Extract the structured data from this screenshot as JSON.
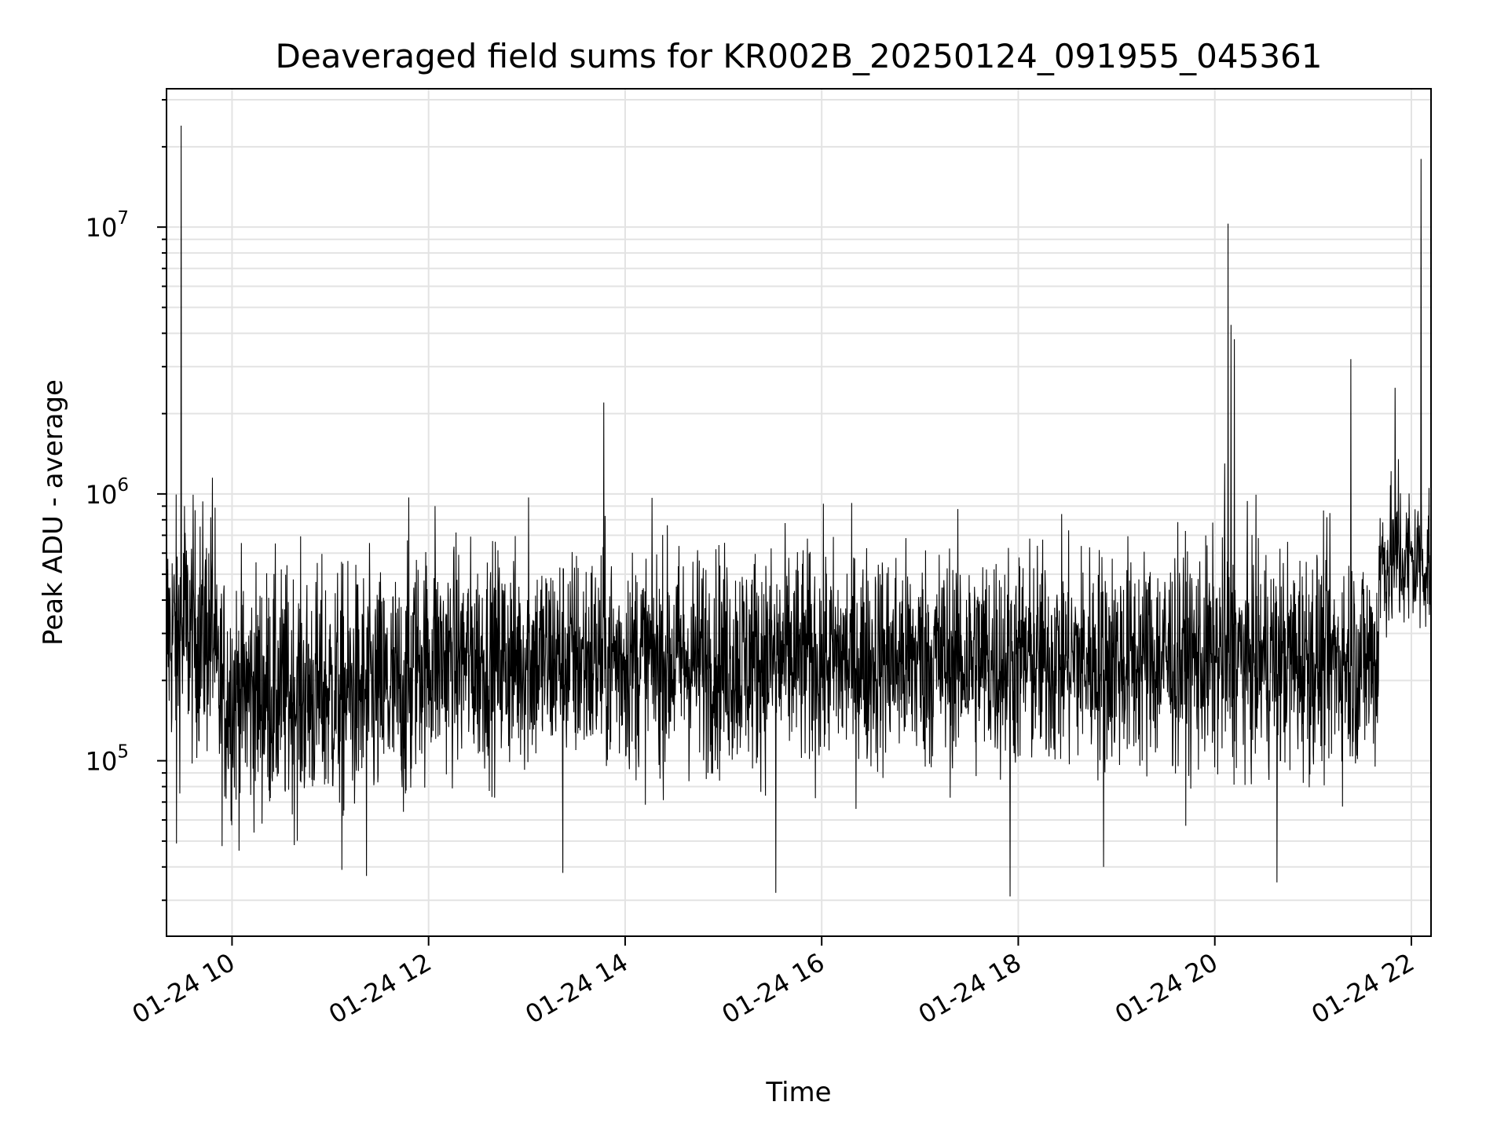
{
  "chart_data": {
    "type": "line",
    "title": "Deaveraged field sums for KR002B_20250124_091955_045361",
    "xlabel": "Time",
    "ylabel": "Peak ADU - average",
    "yscale": "log",
    "ylim": [
      22000,
      33000000
    ],
    "xlim": [
      "01-24 09:20",
      "01-24 22:12"
    ],
    "grid": true,
    "line_color": "#000000",
    "x_ticks": [
      "01-24 10",
      "01-24 12",
      "01-24 14",
      "01-24 16",
      "01-24 18",
      "01-24 20",
      "01-24 22"
    ],
    "y_ticks": [
      {
        "value": 100000,
        "base": "10",
        "exp": "5"
      },
      {
        "value": 1000000,
        "base": "10",
        "exp": "6"
      },
      {
        "value": 10000000,
        "base": "10",
        "exp": "7"
      }
    ],
    "series": [
      {
        "segments": [
          {
            "start": "01-24 09:20",
            "end": "01-24 09:50",
            "median": 300000,
            "spread": 0.55
          },
          {
            "start": "01-24 09:50",
            "end": "01-24 11:50",
            "median": 180000,
            "spread": 0.55
          },
          {
            "start": "01-24 11:50",
            "end": "01-24 21:40",
            "median": 240000,
            "spread": 0.5
          },
          {
            "start": "01-24 21:40",
            "end": "01-24 22:12",
            "median": 560000,
            "spread": 0.35
          }
        ],
        "spikes": [
          {
            "x": "01-24 09:29",
            "y": 24000000
          },
          {
            "x": "01-24 09:31",
            "y": 900000
          },
          {
            "x": "01-24 09:48",
            "y": 1150000
          },
          {
            "x": "01-24 09:26",
            "y": 49000
          },
          {
            "x": "01-24 11:07",
            "y": 39000
          },
          {
            "x": "01-24 11:22",
            "y": 37000
          },
          {
            "x": "01-24 11:48",
            "y": 970000
          },
          {
            "x": "01-24 12:04",
            "y": 900000
          },
          {
            "x": "01-24 13:01",
            "y": 970000
          },
          {
            "x": "01-24 13:47",
            "y": 2200000
          },
          {
            "x": "01-24 13:22",
            "y": 38000
          },
          {
            "x": "01-24 15:32",
            "y": 32000
          },
          {
            "x": "01-24 17:55",
            "y": 31000
          },
          {
            "x": "01-24 18:52",
            "y": 40000
          },
          {
            "x": "01-24 20:08",
            "y": 10300000
          },
          {
            "x": "01-24 20:10",
            "y": 4300000
          },
          {
            "x": "01-24 20:12",
            "y": 3800000
          },
          {
            "x": "01-24 20:06",
            "y": 1300000
          },
          {
            "x": "01-24 20:38",
            "y": 35000
          },
          {
            "x": "01-24 21:23",
            "y": 3200000
          },
          {
            "x": "01-24 21:50",
            "y": 2500000
          },
          {
            "x": "01-24 22:06",
            "y": 18000000
          },
          {
            "x": "01-24 21:52",
            "y": 1350000
          }
        ]
      }
    ]
  }
}
